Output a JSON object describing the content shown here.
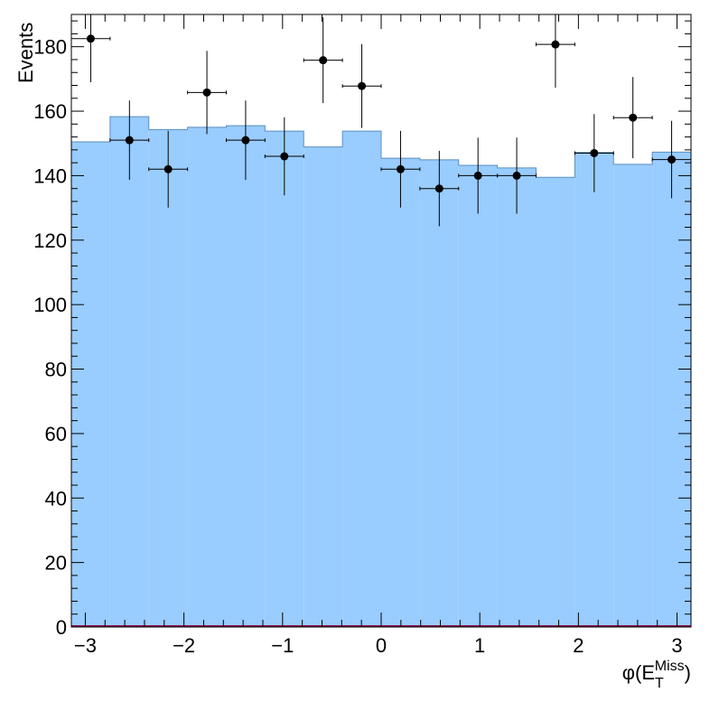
{
  "chart_data": {
    "type": "bar",
    "ylabel": "Events",
    "xlabel": {
      "main": "φ(E",
      "sub": "T",
      "sup": "Miss",
      "close": ")"
    },
    "xlim": [
      -3.1416,
      3.1416
    ],
    "ylim": [
      0,
      190
    ],
    "bin_edges": [
      -3.1416,
      -2.7489,
      -2.3562,
      -1.9635,
      -1.5708,
      -1.1781,
      -0.7854,
      -0.3927,
      0.0,
      0.3927,
      0.7854,
      1.1781,
      1.5708,
      1.9635,
      2.3562,
      2.7489,
      3.1416
    ],
    "x_ticks": [
      -3,
      -2,
      -1,
      0,
      1,
      2,
      3
    ],
    "x_tick_labels": [
      "−3",
      "−2",
      "−1",
      "0",
      "1",
      "2",
      "3"
    ],
    "y_ticks": [
      0,
      20,
      40,
      60,
      80,
      100,
      120,
      140,
      160,
      180
    ],
    "y_tick_labels": [
      "0",
      "20",
      "40",
      "60",
      "80",
      "100",
      "120",
      "140",
      "160",
      "180"
    ],
    "series": [
      {
        "kind": "histogram",
        "values": [
          150.5,
          158.3,
          154.3,
          155.0,
          155.5,
          153.8,
          148.9,
          153.8,
          145.4,
          144.9,
          143.2,
          142.4,
          139.5,
          147.2,
          143.5,
          147.3
        ],
        "fill": "#99ccff",
        "line": "#5a8fc0"
      },
      {
        "kind": "data-points",
        "values": [
          182.5,
          151,
          142,
          165.8,
          151,
          146,
          175.8,
          167.8,
          142,
          136,
          140,
          140,
          180.7,
          147,
          158,
          145
        ],
        "errors": [
          13.5,
          12.3,
          11.9,
          12.9,
          12.3,
          12.1,
          13.3,
          13.0,
          11.9,
          11.7,
          11.8,
          11.8,
          13.4,
          12.1,
          12.6,
          12.0
        ],
        "color": "#000000"
      }
    ],
    "grid": false,
    "legend": "none",
    "baseline_color": "#8b0a50"
  }
}
